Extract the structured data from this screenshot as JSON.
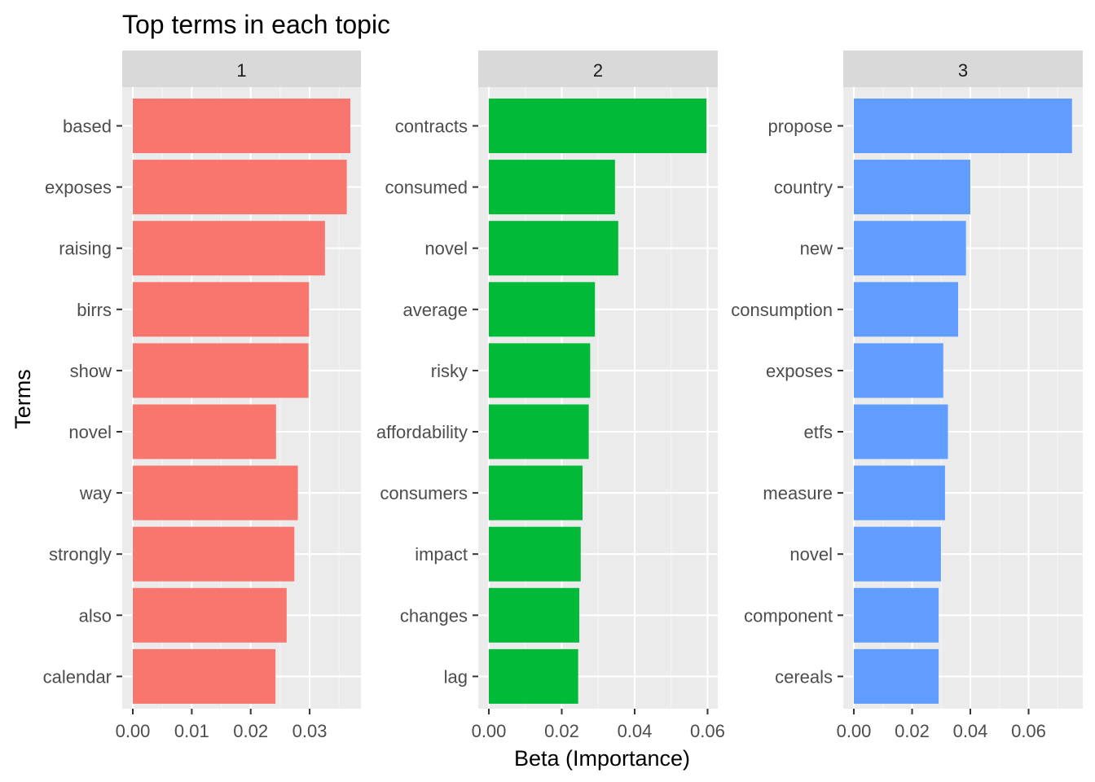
{
  "chart_data": {
    "type": "bar",
    "orientation": "horizontal",
    "title": "Top terms in each topic",
    "xlabel": "Beta (Importance)",
    "ylabel": "Terms",
    "grid": true,
    "legend": "none",
    "facets": [
      {
        "strip": "1",
        "color": "#F8766D",
        "xlim": [
          0,
          0.0387
        ],
        "x_ticks": [
          "0.00",
          "0.01",
          "0.02",
          "0.03"
        ],
        "x_tick_values": [
          0,
          0.01,
          0.02,
          0.03
        ],
        "categories": [
          "based",
          "exposes",
          "raising",
          "birrs",
          "show",
          "novel",
          "way",
          "strongly",
          "also",
          "calendar"
        ],
        "values": [
          0.0369,
          0.0363,
          0.0326,
          0.0299,
          0.0298,
          0.0243,
          0.028,
          0.0274,
          0.0261,
          0.0242
        ]
      },
      {
        "strip": "2",
        "color": "#00BA38",
        "xlim": [
          0,
          0.0628
        ],
        "x_ticks": [
          "0.00",
          "0.02",
          "0.04",
          "0.06"
        ],
        "x_tick_values": [
          0,
          0.02,
          0.04,
          0.06
        ],
        "categories": [
          "contracts",
          "consumed",
          "novel",
          "average",
          "risky",
          "affordability",
          "consumers",
          "impact",
          "changes",
          "lag"
        ],
        "values": [
          0.0597,
          0.0346,
          0.0355,
          0.0291,
          0.0278,
          0.0274,
          0.0257,
          0.0252,
          0.0248,
          0.0245
        ]
      },
      {
        "strip": "3",
        "color": "#619CFF",
        "xlim": [
          0,
          0.0786
        ],
        "x_ticks": [
          "0.00",
          "0.02",
          "0.04",
          "0.06"
        ],
        "x_tick_values": [
          0,
          0.02,
          0.04,
          0.06
        ],
        "categories": [
          "propose",
          "country",
          "new",
          "consumption",
          "exposes",
          "etfs",
          "measure",
          "novel",
          "component",
          "cereals"
        ],
        "values": [
          0.0749,
          0.04,
          0.0385,
          0.0358,
          0.0307,
          0.0323,
          0.0313,
          0.0299,
          0.0291,
          0.0291
        ]
      }
    ]
  }
}
